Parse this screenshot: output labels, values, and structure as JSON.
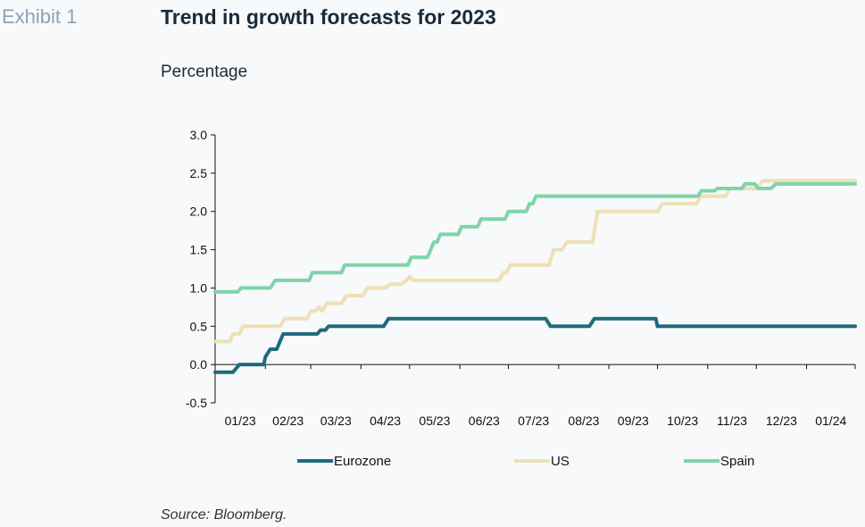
{
  "exhibit_label": "Exhibit 1",
  "title": "Trend in growth forecasts for 2023",
  "subtitle": "Percentage",
  "source": "Source: Bloomberg.",
  "chart_data": {
    "type": "line",
    "title": "Trend in growth forecasts for 2023",
    "ylabel": "Percentage",
    "xlabel": "",
    "x_ticks": [
      "01/23",
      "02/23",
      "03/23",
      "04/23",
      "05/23",
      "06/23",
      "07/23",
      "08/23",
      "09/23",
      "10/23",
      "11/23",
      "12/23",
      "01/24"
    ],
    "y_ticks": [
      "3.0",
      "2.5",
      "2.0",
      "1.5",
      "1.0",
      "0.5",
      "0.0",
      "-0.5"
    ],
    "ylim": [
      -0.5,
      3.0
    ],
    "xlim": [
      "2023-01-01",
      "2024-01-31"
    ],
    "grid": false,
    "legend_position": "bottom",
    "series": [
      {
        "name": "Eurozone",
        "color": "#1e6b7c",
        "points": [
          [
            "2023-01-01",
            -0.1
          ],
          [
            "2023-01-12",
            -0.1
          ],
          [
            "2023-01-16",
            0.0
          ],
          [
            "2023-01-31",
            0.0
          ],
          [
            "2023-02-01",
            0.1
          ],
          [
            "2023-02-04",
            0.2
          ],
          [
            "2023-02-08",
            0.2
          ],
          [
            "2023-02-10",
            0.3
          ],
          [
            "2023-02-12",
            0.4
          ],
          [
            "2023-03-05",
            0.4
          ],
          [
            "2023-03-07",
            0.45
          ],
          [
            "2023-03-10",
            0.45
          ],
          [
            "2023-03-12",
            0.5
          ],
          [
            "2023-04-15",
            0.5
          ],
          [
            "2023-04-18",
            0.6
          ],
          [
            "2023-07-24",
            0.6
          ],
          [
            "2023-07-27",
            0.5
          ],
          [
            "2023-08-20",
            0.5
          ],
          [
            "2023-08-23",
            0.6
          ],
          [
            "2023-09-30",
            0.6
          ],
          [
            "2023-10-01",
            0.5
          ],
          [
            "2024-01-31",
            0.5
          ]
        ]
      },
      {
        "name": "US",
        "color": "#ede0b4",
        "points": [
          [
            "2023-01-01",
            0.3
          ],
          [
            "2023-01-10",
            0.3
          ],
          [
            "2023-01-12",
            0.4
          ],
          [
            "2023-01-16",
            0.4
          ],
          [
            "2023-01-18",
            0.5
          ],
          [
            "2023-02-10",
            0.5
          ],
          [
            "2023-02-13",
            0.6
          ],
          [
            "2023-02-27",
            0.6
          ],
          [
            "2023-03-01",
            0.7
          ],
          [
            "2023-03-04",
            0.7
          ],
          [
            "2023-03-06",
            0.75
          ],
          [
            "2023-03-08",
            0.7
          ],
          [
            "2023-03-11",
            0.8
          ],
          [
            "2023-03-20",
            0.8
          ],
          [
            "2023-03-23",
            0.9
          ],
          [
            "2023-04-02",
            0.9
          ],
          [
            "2023-04-05",
            1.0
          ],
          [
            "2023-04-16",
            1.0
          ],
          [
            "2023-04-19",
            1.05
          ],
          [
            "2023-04-26",
            1.05
          ],
          [
            "2023-04-29",
            1.1
          ],
          [
            "2023-05-01",
            1.15
          ],
          [
            "2023-05-03",
            1.1
          ],
          [
            "2023-06-25",
            1.1
          ],
          [
            "2023-06-28",
            1.2
          ],
          [
            "2023-06-30",
            1.2
          ],
          [
            "2023-07-02",
            1.3
          ],
          [
            "2023-07-26",
            1.3
          ],
          [
            "2023-07-29",
            1.5
          ],
          [
            "2023-08-03",
            1.5
          ],
          [
            "2023-08-06",
            1.6
          ],
          [
            "2023-08-22",
            1.6
          ],
          [
            "2023-08-25",
            2.0
          ],
          [
            "2023-10-01",
            2.0
          ],
          [
            "2023-10-04",
            2.1
          ],
          [
            "2023-10-25",
            2.1
          ],
          [
            "2023-10-28",
            2.2
          ],
          [
            "2023-11-12",
            2.2
          ],
          [
            "2023-11-15",
            2.3
          ],
          [
            "2023-12-01",
            2.3
          ],
          [
            "2023-12-05",
            2.4
          ],
          [
            "2024-01-31",
            2.4
          ]
        ]
      },
      {
        "name": "Spain",
        "color": "#7fd4a8",
        "points": [
          [
            "2023-01-01",
            0.95
          ],
          [
            "2023-01-15",
            0.95
          ],
          [
            "2023-01-17",
            1.0
          ],
          [
            "2023-02-04",
            1.0
          ],
          [
            "2023-02-07",
            1.1
          ],
          [
            "2023-02-28",
            1.1
          ],
          [
            "2023-03-02",
            1.2
          ],
          [
            "2023-03-20",
            1.2
          ],
          [
            "2023-03-22",
            1.3
          ],
          [
            "2023-04-30",
            1.3
          ],
          [
            "2023-05-02",
            1.4
          ],
          [
            "2023-05-12",
            1.4
          ],
          [
            "2023-05-14",
            1.5
          ],
          [
            "2023-05-16",
            1.6
          ],
          [
            "2023-05-18",
            1.6
          ],
          [
            "2023-05-20",
            1.7
          ],
          [
            "2023-05-31",
            1.7
          ],
          [
            "2023-06-02",
            1.8
          ],
          [
            "2023-06-12",
            1.8
          ],
          [
            "2023-06-14",
            1.9
          ],
          [
            "2023-06-29",
            1.9
          ],
          [
            "2023-07-01",
            2.0
          ],
          [
            "2023-07-12",
            2.0
          ],
          [
            "2023-07-14",
            2.1
          ],
          [
            "2023-07-16",
            2.1
          ],
          [
            "2023-07-18",
            2.2
          ],
          [
            "2023-10-26",
            2.2
          ],
          [
            "2023-10-28",
            2.27
          ],
          [
            "2023-11-05",
            2.27
          ],
          [
            "2023-11-07",
            2.3
          ],
          [
            "2023-11-22",
            2.3
          ],
          [
            "2023-11-24",
            2.36
          ],
          [
            "2023-11-30",
            2.36
          ],
          [
            "2023-12-02",
            2.3
          ],
          [
            "2023-12-10",
            2.3
          ],
          [
            "2023-12-13",
            2.36
          ],
          [
            "2024-01-31",
            2.36
          ]
        ]
      }
    ]
  }
}
